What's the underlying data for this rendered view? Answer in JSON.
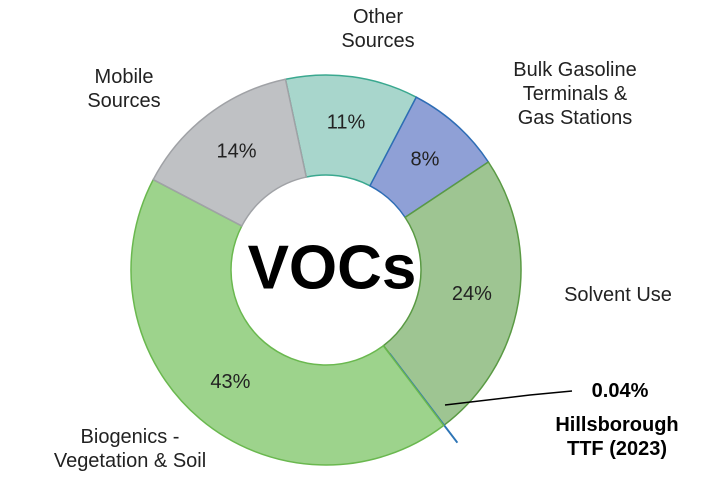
{
  "chart_data": {
    "type": "donut",
    "title": "VOCs",
    "categories": [
      "Other Sources",
      "Bulk Gasoline Terminals & Gas Stations",
      "Solvent Use",
      "Hillsborough TTF (2023)",
      "Biogenics - Vegetation & Soil",
      "Mobile Sources"
    ],
    "values": [
      11,
      8,
      24,
      0.04,
      43,
      14
    ],
    "value_labels": [
      "11%",
      "8%",
      "24%",
      "0.04%",
      "43%",
      "14%"
    ],
    "colors": [
      "#a8d6cc",
      "#8fa0d6",
      "#9ec592",
      "#2e75b6",
      "#9dd38c",
      "#bfc1c4"
    ]
  }
}
